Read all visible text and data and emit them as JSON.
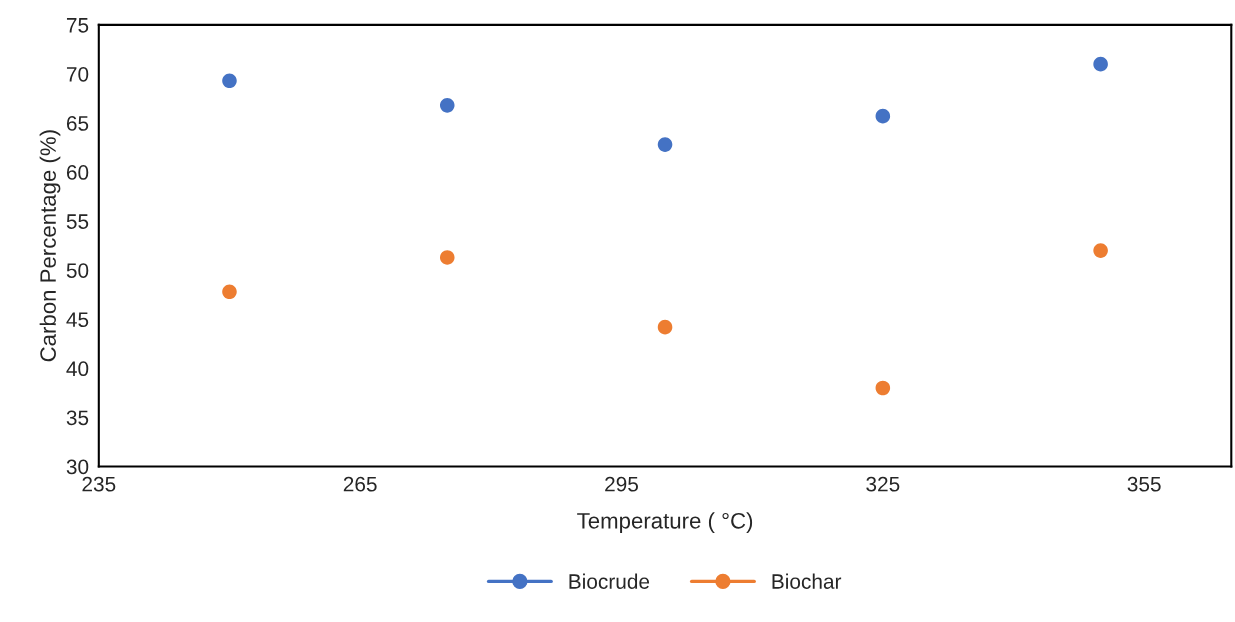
{
  "chart_data": {
    "type": "scatter",
    "xlabel": "Temperature ( °C)",
    "ylabel": "Carbon Percentage (%)",
    "x": [
      250,
      275,
      300,
      325,
      350
    ],
    "series": [
      {
        "name": "Biocrude",
        "color": "#4472c4",
        "values": [
          69.3,
          66.8,
          62.8,
          65.7,
          71.0
        ]
      },
      {
        "name": "Biochar",
        "color": "#ed7d31",
        "values": [
          47.8,
          51.3,
          44.2,
          38.0,
          52.0
        ]
      }
    ],
    "xlim": [
      235,
      365
    ],
    "xticks": [
      235,
      265,
      295,
      325,
      355
    ],
    "ylim": [
      30,
      75
    ],
    "yticks": [
      30,
      35,
      40,
      45,
      50,
      55,
      60,
      65,
      70,
      75
    ],
    "grid": false,
    "legend": "bottom",
    "marker": "circle"
  }
}
